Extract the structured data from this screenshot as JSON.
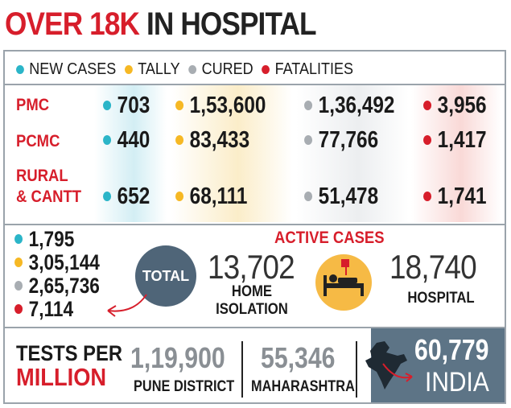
{
  "headline": {
    "part1": "OVER 18K",
    "part2": "IN HOSPITAL"
  },
  "legend": [
    {
      "label": "NEW CASES",
      "color": "#2bb5c8"
    },
    {
      "label": "TALLY",
      "color": "#f6b824"
    },
    {
      "label": "CURED",
      "color": "#a8adb2"
    },
    {
      "label": "FATALITIES",
      "color": "#d71e2b"
    }
  ],
  "rows": [
    {
      "label_line1": "PMC",
      "label_line2": "",
      "new_cases": "703",
      "tally": "1,53,600",
      "cured": "1,36,492",
      "fatalities": "3,956"
    },
    {
      "label_line1": "PCMC",
      "label_line2": "",
      "new_cases": "440",
      "tally": "83,433",
      "cured": "77,766",
      "fatalities": "1,417"
    },
    {
      "label_line1": "RURAL",
      "label_line2": "& CANTT",
      "new_cases": "652",
      "tally": "68,111",
      "cured": "51,478",
      "fatalities": "1,741"
    }
  ],
  "total": {
    "label": "TOTAL",
    "new_cases": "1,795",
    "tally": "3,05,144",
    "cured": "2,65,736",
    "fatalities": "7,114"
  },
  "active_cases": {
    "title": "ACTIVE CASES",
    "home_isolation": {
      "value": "13,702",
      "label_line1": "HOME",
      "label_line2": "ISOLATION"
    },
    "hospital": {
      "value": "18,740",
      "label": "HOSPITAL"
    }
  },
  "tests": {
    "label_line1": "TESTS PER",
    "label_line2": "MILLION",
    "pune": {
      "value": "1,19,900",
      "label": "PUNE DISTRICT"
    },
    "maharashtra": {
      "value": "55,346",
      "label": "MAHARASHTRA"
    },
    "india": {
      "value": "60,779",
      "label": "INDIA"
    }
  },
  "colors": {
    "red": "#d71e2b",
    "teal": "#2bb5c8",
    "yellow": "#f6b824",
    "grey": "#a8adb2",
    "slate": "#4f6578"
  },
  "icons": [
    "total-arrow-icon",
    "hospital-bed-icon",
    "india-map-icon"
  ]
}
